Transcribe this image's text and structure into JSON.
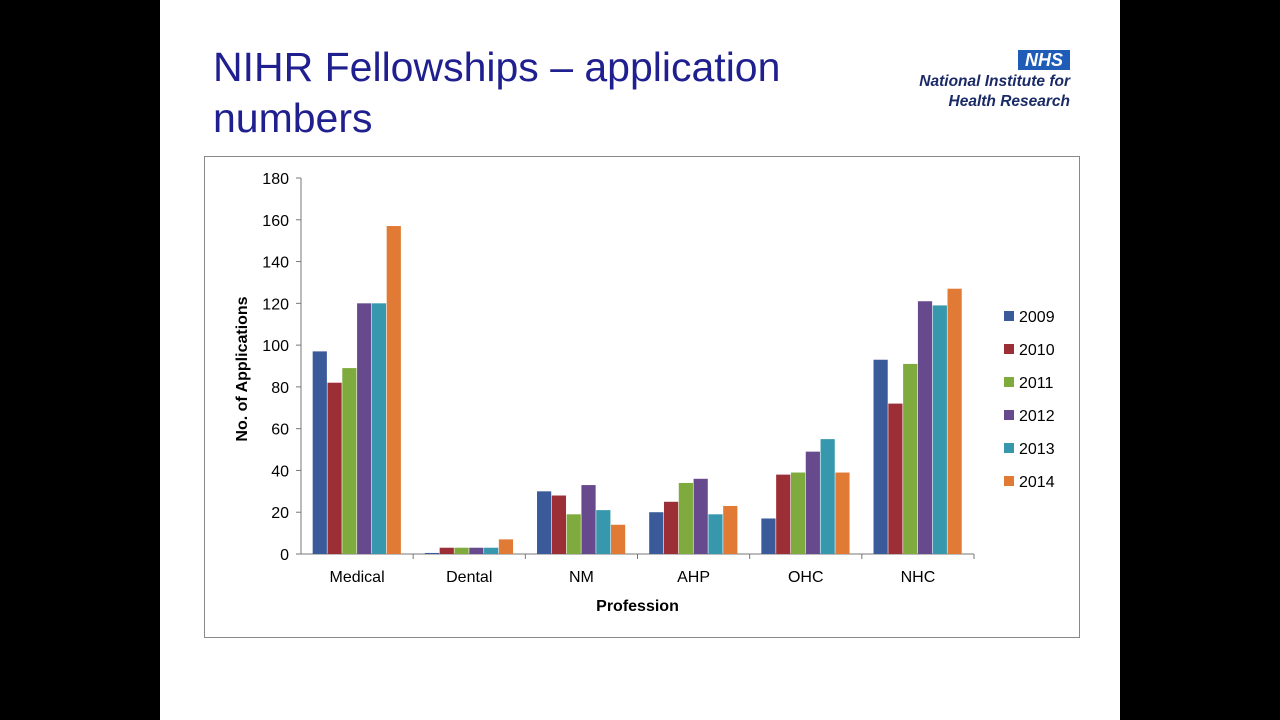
{
  "slide": {
    "title": "NIHR Fellowships – application numbers"
  },
  "logo": {
    "badge": "NHS",
    "line1": "National Institute for",
    "line2": "Health Research",
    "badge_color": "#1f5cb8"
  },
  "chart_data": {
    "type": "bar",
    "categories": [
      "Medical",
      "Dental",
      "NM",
      "AHP",
      "OHC",
      "NHC"
    ],
    "series": [
      {
        "name": "2009",
        "color": "#3a5a9a",
        "values": [
          97,
          0.5,
          30,
          20,
          17,
          93
        ]
      },
      {
        "name": "2010",
        "color": "#9b2f35",
        "values": [
          82,
          3,
          28,
          25,
          38,
          72
        ]
      },
      {
        "name": "2011",
        "color": "#7faa3d",
        "values": [
          89,
          3,
          19,
          34,
          39,
          91
        ]
      },
      {
        "name": "2012",
        "color": "#664a8d",
        "values": [
          120,
          3,
          33,
          36,
          49,
          121
        ]
      },
      {
        "name": "2013",
        "color": "#3797ad",
        "values": [
          120,
          3,
          21,
          19,
          55,
          119
        ]
      },
      {
        "name": "2014",
        "color": "#e07a35",
        "values": [
          157,
          7,
          14,
          23,
          39,
          127
        ]
      }
    ],
    "title": "",
    "xlabel": "Profession",
    "ylabel": "No. of Applications",
    "ylim": [
      0,
      180
    ],
    "yticks": [
      0,
      20,
      40,
      60,
      80,
      100,
      120,
      140,
      160,
      180
    ],
    "grid": false,
    "legend": "right"
  }
}
